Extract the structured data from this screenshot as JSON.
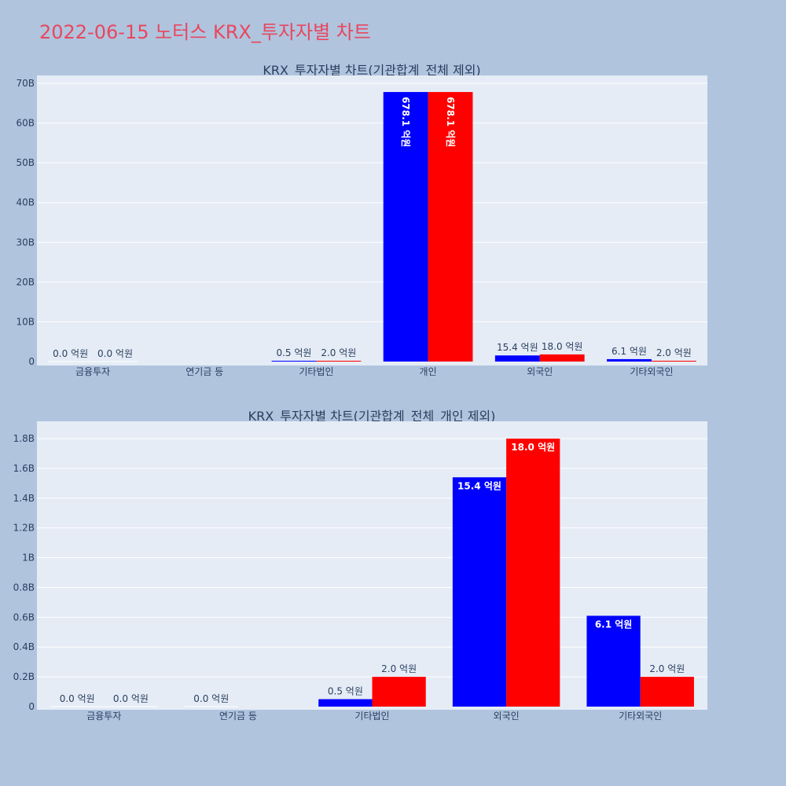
{
  "title": "2022-06-15 노터스 KRX_투자자별 차트",
  "colors": {
    "bg": "#b0c4de",
    "plot_bg": "#e5ecf6",
    "buy": "#0000ff",
    "sell": "#ff0000",
    "title": "#e8475f"
  },
  "chart_data": [
    {
      "type": "bar",
      "title": "KRX_투자자별 차트(기관합계_전체 제외)",
      "categories": [
        "금융투자",
        "연기금 등",
        "기타법인",
        "개인",
        "외국인",
        "기타외국인"
      ],
      "ylim": [
        0,
        70
      ],
      "yticks": [
        0,
        10,
        20,
        30,
        40,
        50,
        60,
        70
      ],
      "ytick_labels": [
        "0",
        "10B",
        "20B",
        "30B",
        "40B",
        "50B",
        "60B",
        "70B"
      ],
      "label_mode": "rotated",
      "series": [
        {
          "values": [
            0.0,
            null,
            0.05,
            67.81,
            1.54,
            0.61
          ],
          "labels": [
            "0.0 억원",
            "",
            "0.5 억원",
            "678.1 억원",
            "15.4 억원",
            "6.1 억원"
          ]
        },
        {
          "values": [
            0.0,
            null,
            0.2,
            67.81,
            1.8,
            0.2
          ],
          "labels": [
            "0.0 억원",
            "",
            "2.0 억원",
            "678.1 억원",
            "18.0 억원",
            "2.0 억원"
          ]
        }
      ],
      "grid": true
    },
    {
      "type": "bar",
      "title": "KRX_투자자별 차트(기관합계_전체_개인 제외)",
      "categories": [
        "금융투자",
        "연기금 등",
        "기타법인",
        "외국인",
        "기타외국인"
      ],
      "ylim": [
        0,
        1.85
      ],
      "yticks": [
        0,
        0.2,
        0.4,
        0.6,
        0.8,
        1.0,
        1.2,
        1.4,
        1.6,
        1.8
      ],
      "ytick_labels": [
        "0",
        "0.2B",
        "0.4B",
        "0.6B",
        "0.8B",
        "1B",
        "1.2B",
        "1.4B",
        "1.6B",
        "1.8B"
      ],
      "label_mode": "inside",
      "series": [
        {
          "values": [
            0.0,
            0.0,
            0.05,
            1.54,
            0.61
          ],
          "labels": [
            "0.0 억원",
            "0.0 억원",
            "0.5 억원",
            "15.4 억원",
            "6.1 억원"
          ]
        },
        {
          "values": [
            0.0,
            null,
            0.2,
            1.8,
            0.2
          ],
          "labels": [
            "0.0 억원",
            "",
            "2.0 억원",
            "18.0 억원",
            "2.0 억원"
          ]
        }
      ],
      "grid": true
    }
  ]
}
